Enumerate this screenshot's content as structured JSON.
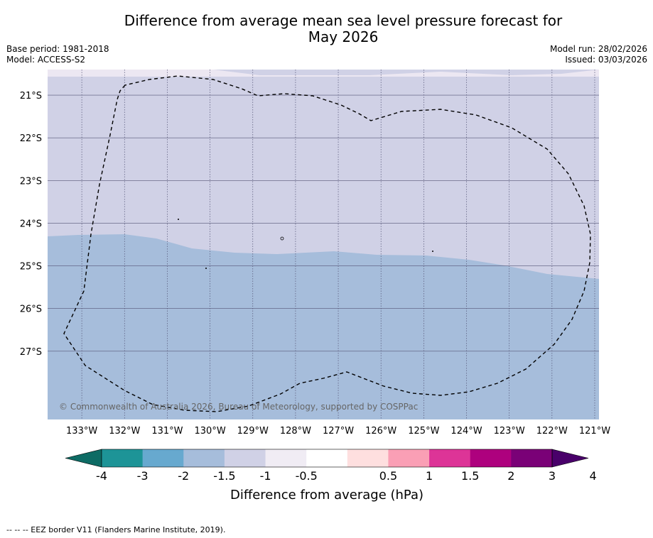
{
  "title_line1": "Difference from average mean sea level pressure forecast for",
  "title_line2": "May 2026",
  "base_period": "Base period: 1981-2018",
  "model": "Model: ACCESS-S2",
  "model_run": "Model run: 28/02/2026",
  "issued": "Issued: 03/03/2026",
  "copyright": "© Commonwealth of Australia 2026, Bureau of Meteorology, supported by COSPPac",
  "footnote": "--  --  -- EEZ border V11 (Flanders Marine Institute, 2019).",
  "map": {
    "lon_range": [
      -133.8,
      -120.9
    ],
    "lat_range": [
      -28.6,
      -20.4
    ],
    "latitude_labels": [
      "21°S",
      "22°S",
      "23°S",
      "24°S",
      "25°S",
      "26°S",
      "27°S"
    ],
    "longitude_labels": [
      "133°W",
      "132°W",
      "131°W",
      "130°W",
      "129°W",
      "128°W",
      "127°W",
      "126°W",
      "125°W",
      "124°W",
      "123°W",
      "122°W",
      "121°W"
    ],
    "anomaly_fields": [
      {
        "range": "-1.5 to -1",
        "color": "#d0d1e6"
      },
      {
        "range": "-2 to -1.5",
        "color": "#a6bddb"
      }
    ],
    "top_strip_color": "#ece7f2"
  },
  "colorbar": {
    "colors": [
      "#0d6b64",
      "#1d9497",
      "#67a9cf",
      "#a6bddb",
      "#d0d1e6",
      "#f0ecf4",
      "#ffffff",
      "#fedfdf",
      "#fa9fb5",
      "#dd3497",
      "#ae017e",
      "#7a0177",
      "#49006a"
    ],
    "tick_labels": [
      "-4",
      "-3",
      "-2",
      "-1.5",
      "-1",
      "-0.5",
      "0.5",
      "1",
      "1.5",
      "2",
      "3",
      "4"
    ],
    "label": "Difference from average (hPa)"
  }
}
